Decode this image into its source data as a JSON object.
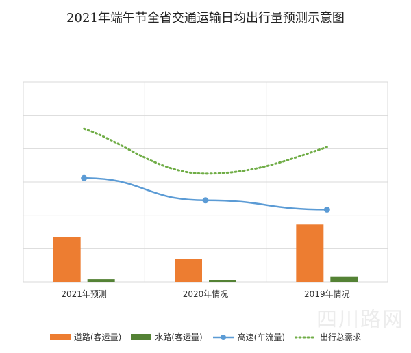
{
  "chart_data": {
    "type": "bar",
    "title": "2021年端午节全省交通运输日均出行量预测示意图",
    "categories": [
      "2021年预测",
      "2020年情况",
      "2019年情况"
    ],
    "grid": true,
    "legend_position": "bottom",
    "ylim": [
      0,
      6
    ],
    "series": [
      {
        "name": "道路(客运量)",
        "kind": "bar",
        "color": "#ED7D31",
        "values": [
          1.35,
          0.68,
          1.72
        ]
      },
      {
        "name": "水路(客运量)",
        "kind": "bar",
        "color": "#548235",
        "values": [
          0.08,
          0.05,
          0.15
        ]
      },
      {
        "name": "高速(车流量)",
        "kind": "line",
        "color": "#5B9BD5",
        "values": [
          3.12,
          2.45,
          2.17
        ]
      },
      {
        "name": "出行总需求",
        "kind": "dotted",
        "color": "#70AD47",
        "values": [
          4.6,
          3.25,
          4.05
        ]
      }
    ]
  },
  "watermark": "四川路网"
}
